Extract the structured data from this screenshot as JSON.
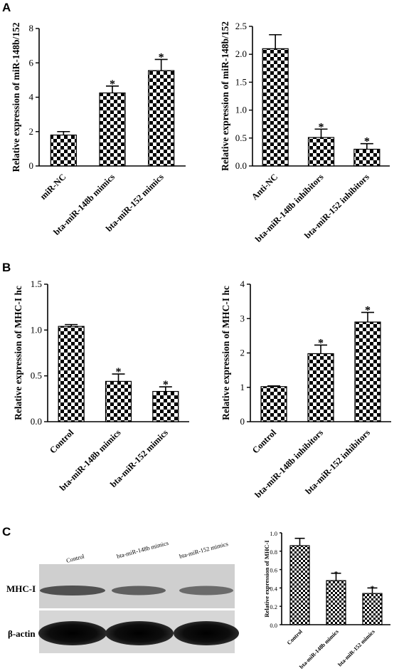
{
  "panels": {
    "A": "A",
    "B": "B",
    "C": "C"
  },
  "blot": {
    "lanes": [
      "Control",
      "bta-miR-148b mimics",
      "bta-miR-152 mimics"
    ],
    "proteins": [
      "MHC-I",
      "β-actin"
    ]
  },
  "chart_data": [
    {
      "type": "bar",
      "panel": "A",
      "categories": [
        "miR-NC",
        "bta-miR-148b mimics",
        "bta-miR-152 mimics"
      ],
      "values": [
        1.8,
        4.25,
        5.55
      ],
      "errors": [
        0.2,
        0.4,
        0.65
      ],
      "significance": [
        "",
        "*",
        "*"
      ],
      "ylabel": "Relative expression of miR-148b/152",
      "ylim": [
        0,
        8
      ],
      "yticks": [
        0,
        2,
        4,
        6,
        8
      ],
      "ytick_labels": [
        "0",
        "2",
        "4",
        "6",
        "8"
      ],
      "grid": false,
      "fill": "checkerboard"
    },
    {
      "type": "bar",
      "panel": "A",
      "categories": [
        "Anti-NC",
        "bta-miR-148b inhibitors",
        "bta-miR-152 inhibitors"
      ],
      "values": [
        2.1,
        0.51,
        0.3
      ],
      "errors": [
        0.25,
        0.15,
        0.1
      ],
      "significance": [
        "",
        "*",
        "*"
      ],
      "ylabel": "Relative expression of miR-148b/152",
      "ylim": [
        0,
        2.5
      ],
      "yticks": [
        0,
        0.5,
        1.0,
        1.5,
        2.0,
        2.5
      ],
      "ytick_labels": [
        "0.0",
        "0.5",
        "1.0",
        "1.5",
        "2.0",
        "2.5"
      ],
      "grid": false,
      "fill": "checkerboard"
    },
    {
      "type": "bar",
      "panel": "B",
      "categories": [
        "Control",
        "bta-miR-148b mimics",
        "bta-miR-152 mimics"
      ],
      "values": [
        1.04,
        0.44,
        0.33
      ],
      "errors": [
        0.02,
        0.08,
        0.05
      ],
      "significance": [
        "",
        "*",
        "*"
      ],
      "ylabel": "Relative expression of MHC-I hc",
      "ylim": [
        0,
        1.5
      ],
      "yticks": [
        0,
        0.5,
        1.0,
        1.5
      ],
      "ytick_labels": [
        "0.0",
        "0.5",
        "1.0",
        "1.5"
      ],
      "grid": false,
      "fill": "checkerboard"
    },
    {
      "type": "bar",
      "panel": "B",
      "categories": [
        "Control",
        "bta-miR-148b inhibitors",
        "bta-miR-152 inhibitors"
      ],
      "values": [
        1.02,
        1.98,
        2.9
      ],
      "errors": [
        0.02,
        0.25,
        0.28
      ],
      "significance": [
        "",
        "*",
        "*"
      ],
      "ylabel": "Relative expression of MHC-I hc",
      "ylim": [
        0,
        4
      ],
      "yticks": [
        0,
        1,
        2,
        3,
        4
      ],
      "ytick_labels": [
        "0",
        "1",
        "2",
        "3",
        "4"
      ],
      "grid": false,
      "fill": "checkerboard"
    },
    {
      "type": "bar",
      "panel": "C",
      "categories": [
        "Control",
        "bta-miR-148b mimics",
        "bta-miR-152 mimics"
      ],
      "values": [
        0.86,
        0.48,
        0.34
      ],
      "errors": [
        0.08,
        0.08,
        0.06
      ],
      "significance": [
        "",
        "*",
        "*"
      ],
      "ylabel": "Relative expression of MHC-I",
      "ylim": [
        0,
        1.0
      ],
      "yticks": [
        0,
        0.2,
        0.4,
        0.6,
        0.8,
        1.0
      ],
      "ytick_labels": [
        "0.0",
        "0.2",
        "0.4",
        "0.6",
        "0.8",
        "1.0"
      ],
      "grid": false,
      "fill": "checkerboard"
    }
  ]
}
